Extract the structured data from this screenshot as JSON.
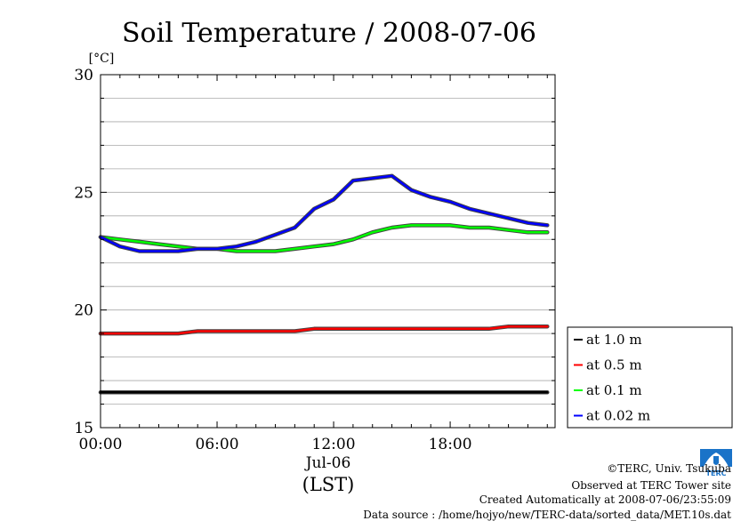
{
  "chart_data": {
    "type": "line",
    "title": "Soil Temperature / 2008-07-06",
    "ylabel": "[°C]",
    "ylim": [
      15,
      30
    ],
    "yticks": [
      15,
      20,
      25,
      30
    ],
    "ytick_labels": [
      "15",
      "20",
      "25",
      "30"
    ],
    "xlim": [
      0,
      23
    ],
    "xticks": [
      0,
      6,
      12,
      18
    ],
    "xtick_labels": [
      "00:00",
      "06:00",
      "12:00",
      "18:00"
    ],
    "xdate": "Jul-06",
    "xlabel": "(LST)",
    "grid": true,
    "legend_position": "right-bottom",
    "x": [
      0,
      1,
      2,
      3,
      4,
      5,
      6,
      7,
      8,
      9,
      10,
      11,
      12,
      12.5,
      13,
      14,
      15,
      16,
      17,
      18,
      19,
      20,
      21,
      22,
      23
    ],
    "series": [
      {
        "name": "at 1.0 m",
        "color": "#000000",
        "values": [
          16.5,
          16.5,
          16.5,
          16.5,
          16.5,
          16.5,
          16.5,
          16.5,
          16.5,
          16.5,
          16.5,
          16.5,
          16.5,
          16.5,
          16.5,
          16.5,
          16.5,
          16.5,
          16.5,
          16.5,
          16.5,
          16.5,
          16.5,
          16.5,
          16.5
        ]
      },
      {
        "name": "at 0.5 m",
        "color": "#ff0000",
        "values": [
          19.0,
          19.0,
          19.0,
          19.0,
          19.0,
          19.1,
          19.1,
          19.1,
          19.1,
          19.1,
          19.1,
          19.2,
          19.2,
          19.2,
          19.2,
          19.2,
          19.2,
          19.2,
          19.2,
          19.2,
          19.2,
          19.2,
          19.3,
          19.3,
          19.3
        ]
      },
      {
        "name": "at 0.1 m",
        "color": "#00ff00",
        "values": [
          23.1,
          23.0,
          22.9,
          22.8,
          22.7,
          22.6,
          22.6,
          22.5,
          22.5,
          22.5,
          22.6,
          22.7,
          22.8,
          22.9,
          23.0,
          23.3,
          23.5,
          23.6,
          23.6,
          23.6,
          23.5,
          23.5,
          23.4,
          23.3,
          23.3
        ]
      },
      {
        "name": "at 0.02 m",
        "color": "#0000ff",
        "values": [
          23.1,
          22.7,
          22.5,
          22.5,
          22.5,
          22.6,
          22.6,
          22.7,
          22.9,
          23.2,
          23.5,
          24.3,
          24.7,
          25.1,
          25.5,
          25.6,
          25.7,
          25.1,
          24.8,
          24.6,
          24.3,
          24.1,
          23.9,
          23.7,
          23.6
        ]
      }
    ]
  },
  "credits": {
    "copyright": "©TERC, Univ. Tsukuba",
    "site": "Observed at TERC Tower site",
    "created": "Created Automatically at 2008-07-06/23:55:09",
    "source": "Data source : /home/hojyo/new/TERC-data/sorted_data/MET.10s.dat"
  },
  "logo": {
    "text": "TERC",
    "color": "#1a73c8"
  }
}
